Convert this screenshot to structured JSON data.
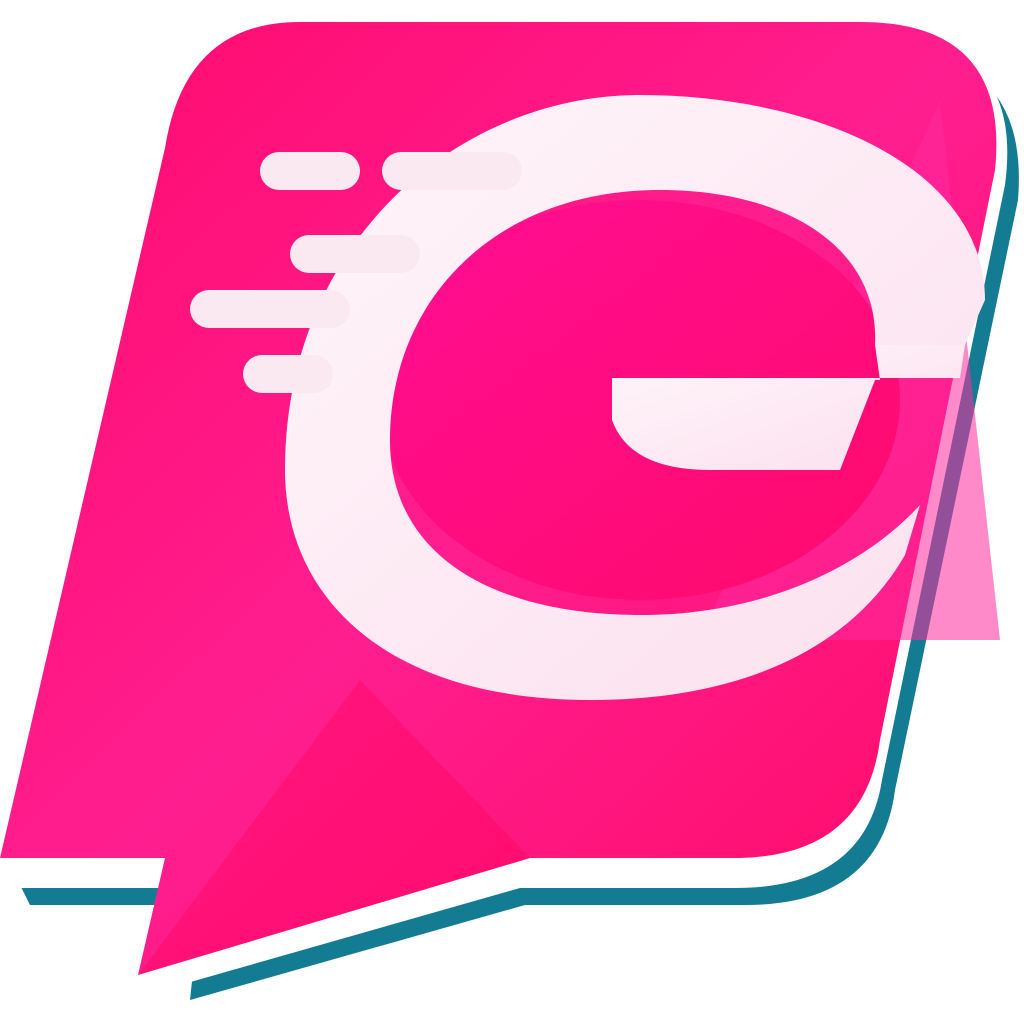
{
  "logo": {
    "letter": "G",
    "icon": "speech-bubble-g-logo-icon",
    "colors": {
      "background": "#ffffff",
      "bubble_pink": "#ff0a78",
      "bubble_magenta": "#ff1493",
      "bubble_dark": "#ff0066",
      "shadow_teal": "#137c92",
      "outline_white": "#ffffff",
      "letter_white": "#fdeef6",
      "speed_lines": "#fbe9f2"
    }
  }
}
